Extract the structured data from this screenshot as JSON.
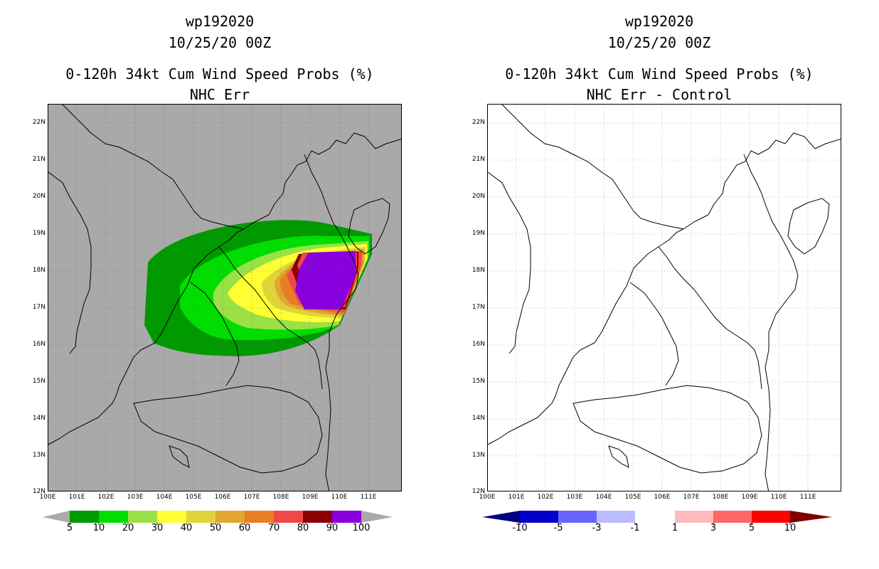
{
  "left_panel": {
    "title_lines": [
      "wp192020",
      "10/25/20 00Z",
      "0-120h 34kt Cum Wind Speed Probs (%)",
      "NHC Err"
    ],
    "map_background": "#a9a9a9",
    "lat_labels": [
      "22N",
      "21N",
      "20N",
      "19N",
      "18N",
      "17N",
      "16N",
      "15N",
      "14N",
      "13N",
      "12N"
    ],
    "lon_labels": [
      "100E",
      "101E",
      "102E",
      "103E",
      "104E",
      "105E",
      "106E",
      "107E",
      "108E",
      "109E",
      "110E",
      "111E"
    ],
    "colorbar": {
      "colors": [
        "#009900",
        "#00dd00",
        "#99e144",
        "#ffff33",
        "#e1d43a",
        "#e1a630",
        "#e97f25",
        "#f04848",
        "#8b0000",
        "#8800dd"
      ],
      "end_color": "#aaaaaa",
      "labels": [
        "5",
        "10",
        "20",
        "30",
        "40",
        "50",
        "60",
        "70",
        "80",
        "90",
        "100"
      ]
    }
  },
  "right_panel": {
    "title_lines": [
      "wp192020",
      "10/25/20 00Z",
      "0-120h 34kt Cum Wind Speed Probs (%)",
      "NHC Err - Control"
    ],
    "map_background": "#ffffff",
    "lat_labels": [
      "22N",
      "21N",
      "20N",
      "19N",
      "18N",
      "17N",
      "16N",
      "15N",
      "14N",
      "13N",
      "12N"
    ],
    "lon_labels": [
      "100E",
      "101E",
      "102E",
      "103E",
      "104E",
      "105E",
      "106E",
      "107E",
      "108E",
      "109E",
      "110E",
      "111E"
    ],
    "colorbar": {
      "colors": [
        "#0000c8",
        "#6666ff",
        "#bbbbff",
        "#ffffff",
        "#ffbbbb",
        "#ff6666",
        "#ff0000"
      ],
      "low_end_color": "#000080",
      "high_end_color": "#800000",
      "labels": [
        "-10",
        "-5",
        "-3",
        "-1",
        "1",
        "3",
        "5",
        "10"
      ]
    }
  }
}
